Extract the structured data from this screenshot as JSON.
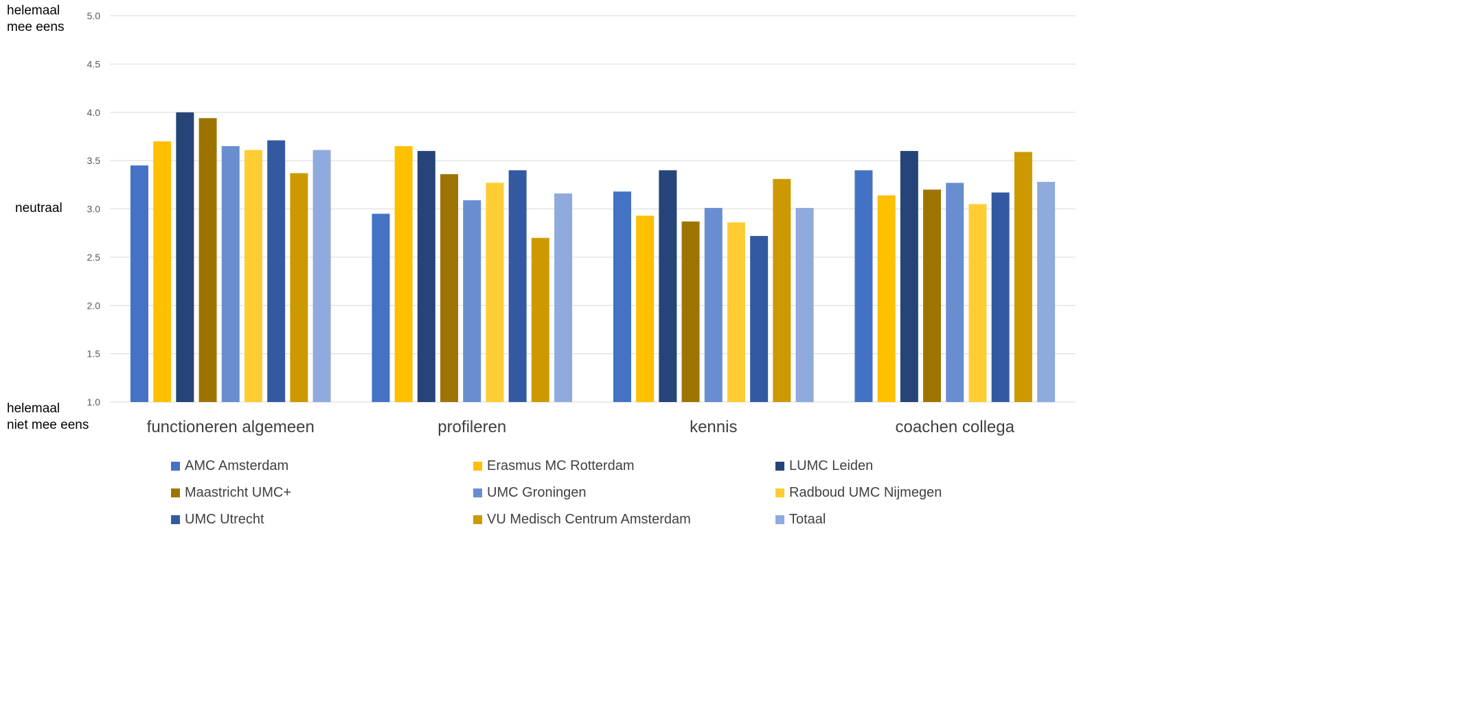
{
  "chart_data": {
    "type": "bar",
    "categories": [
      "functioneren algemeen",
      "profileren",
      "kennis",
      "coachen collega"
    ],
    "series": [
      {
        "name": "AMC Amsterdam",
        "color": "#4472C4",
        "values": [
          3.45,
          2.95,
          3.18,
          3.4
        ]
      },
      {
        "name": "Erasmus MC Rotterdam",
        "color": "#FFC000",
        "values": [
          3.7,
          3.65,
          2.93,
          3.14
        ]
      },
      {
        "name": "LUMC Leiden",
        "color": "#264478",
        "values": [
          4.0,
          3.6,
          3.4,
          3.6
        ]
      },
      {
        "name": "Maastricht UMC+",
        "color": "#9E7400",
        "values": [
          3.94,
          3.36,
          2.87,
          3.2
        ]
      },
      {
        "name": "UMC Groningen",
        "color": "#698ED0",
        "values": [
          3.65,
          3.09,
          3.01,
          3.27
        ]
      },
      {
        "name": "Radboud UMC Nijmegen",
        "color": "#FFCD33",
        "values": [
          3.61,
          3.27,
          2.86,
          3.05
        ]
      },
      {
        "name": "UMC Utrecht",
        "color": "#335AA1",
        "values": [
          3.71,
          3.4,
          2.72,
          3.17
        ]
      },
      {
        "name": "VU Medisch Centrum Amsterdam",
        "color": "#CC9A00",
        "values": [
          3.37,
          2.7,
          3.31,
          3.59
        ]
      },
      {
        "name": "Totaal",
        "color": "#8FAADC",
        "values": [
          3.61,
          3.16,
          3.01,
          3.28
        ]
      }
    ],
    "ylim": [
      1.0,
      5.0
    ],
    "yticks": [
      "1.0",
      "1.5",
      "2.0",
      "2.5",
      "3.0",
      "3.5",
      "4.0",
      "4.5",
      "5.0"
    ],
    "grid": true,
    "legend_position": "bottom",
    "y_annotations": {
      "top": "helemaal\nmee eens",
      "middle": "neutraal",
      "bottom": "helemaal\nniet mee eens"
    }
  }
}
